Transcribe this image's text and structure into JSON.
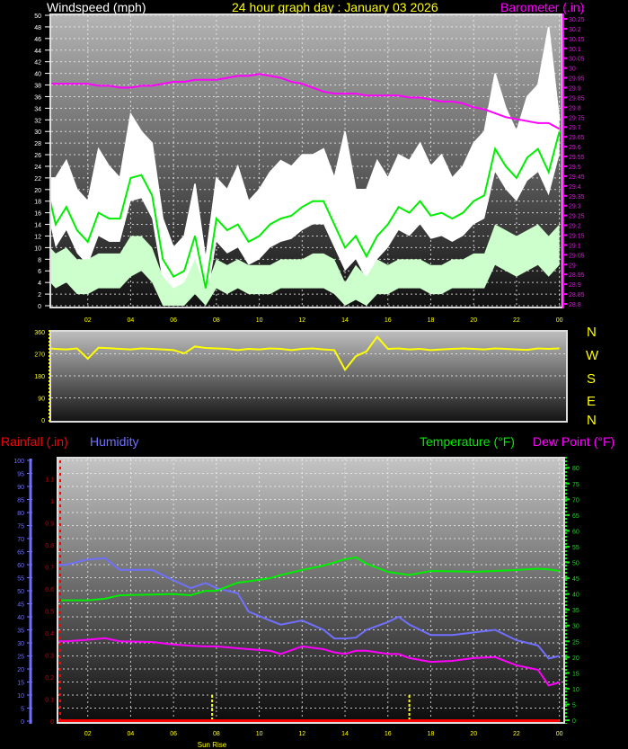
{
  "header": {
    "wind_title": "Windspeed (mph)",
    "title": "24 hour graph day : January 03 2026",
    "baro_title": "Barometer (.in)"
  },
  "bottom_legend": {
    "rainfall": "Rainfall (.in)",
    "humidity": "Humidity",
    "temperature": "Temperature (°F)",
    "dewpoint": "Dew Point (°F)"
  },
  "direction_labels": [
    "N",
    "W",
    "S",
    "E",
    "N"
  ],
  "sunrise_label": "Sun Rise",
  "colors": {
    "background": "#000000",
    "gust": "#ffffff",
    "average": "#00ee00",
    "speed": "#ccffcc",
    "barometer": "#ff00ff",
    "direction": "#ffff00",
    "temperature": "#00ee00",
    "dewpoint": "#ff00ff",
    "humidity": "#7070ff",
    "rainfall": "#ff0000",
    "time_axis": "#ffff00"
  },
  "chart_data": [
    {
      "id": "wind",
      "type": "line",
      "xlabel": "",
      "x_ticks": [
        "02",
        "04",
        "06",
        "08",
        "10",
        "12",
        "14",
        "16",
        "18",
        "20",
        "22",
        "00"
      ],
      "ylim": [
        0,
        50
      ],
      "y_ticks": [
        "0",
        "2",
        "4",
        "6",
        "8",
        "10",
        "12",
        "14",
        "16",
        "18",
        "20",
        "22",
        "24",
        "26",
        "28",
        "30",
        "32",
        "34",
        "36",
        "38",
        "40",
        "42",
        "44",
        "46",
        "48",
        "50"
      ],
      "y2lim": [
        28.8,
        30.25
      ],
      "y2_ticks": [
        "28.8",
        "28.85",
        "28.9",
        "28.95",
        "29",
        "29.05",
        "29.1",
        "29.15",
        "29.2",
        "29.25",
        "29.3",
        "29.35",
        "29.4",
        "29.45",
        "29.5",
        "29.55",
        "29.6",
        "29.65",
        "29.7",
        "29.75",
        "29.8",
        "29.85",
        "29.9",
        "29.95",
        "30",
        "30.05",
        "30.1",
        "30.15",
        "30.2",
        "30.25"
      ],
      "grid": true,
      "x": [
        0.25,
        0.5,
        1,
        1.5,
        2,
        2.5,
        3,
        3.5,
        4,
        4.5,
        5,
        5.5,
        6,
        6.5,
        7,
        7.5,
        8,
        8.5,
        9,
        9.5,
        10,
        10.5,
        11,
        11.5,
        12,
        12.5,
        13,
        13.5,
        14,
        14.5,
        15,
        15.5,
        16,
        16.5,
        17,
        17.5,
        18,
        18.5,
        19,
        19.5,
        20,
        20.5,
        21,
        21.5,
        22,
        22.5,
        23,
        23.5,
        24
      ],
      "series": {
        "gust": [
          22,
          22,
          25,
          20,
          18,
          27,
          24,
          22,
          33,
          30,
          28,
          15,
          10,
          12,
          21,
          8,
          22,
          20,
          24,
          18,
          20,
          23,
          25,
          24,
          26,
          26,
          27,
          22,
          30,
          20,
          20,
          25,
          22,
          26,
          25,
          28,
          24,
          26,
          22,
          24,
          28,
          30,
          40,
          34,
          30,
          36,
          38,
          48,
          32
        ],
        "average": [
          18,
          14,
          17,
          13,
          11,
          16,
          15,
          15,
          22,
          22.5,
          19,
          8,
          5,
          6,
          12,
          3,
          15,
          13,
          14,
          11,
          12,
          14,
          15,
          15.5,
          17,
          18,
          18,
          14,
          10,
          12,
          8.5,
          12,
          14,
          17,
          16,
          18,
          15.5,
          16,
          15,
          16,
          18,
          19,
          27,
          24,
          22,
          25.5,
          27,
          23,
          30
        ],
        "speed_high": [
          10,
          9,
          10,
          8,
          8,
          9,
          9,
          9,
          12,
          12,
          10,
          5,
          3,
          4,
          8,
          3,
          8,
          7,
          8,
          7,
          7,
          7,
          8,
          8,
          8,
          9,
          9,
          8,
          4,
          7,
          5,
          8,
          7,
          8,
          8,
          8,
          7,
          7,
          8,
          8,
          9,
          9,
          14,
          13,
          12,
          13,
          14,
          12,
          14
        ],
        "speed_low": [
          4,
          3,
          4,
          2,
          2,
          3,
          3,
          3,
          5,
          6,
          4,
          0,
          0,
          0,
          2,
          0,
          3,
          2,
          3,
          2,
          2,
          2,
          3,
          3,
          3,
          3,
          3,
          2,
          0,
          1,
          0,
          2,
          2,
          3,
          3,
          3,
          2,
          2,
          3,
          3,
          3,
          3,
          7,
          6,
          5,
          6,
          7,
          5,
          7
        ],
        "barometer": [
          29.92,
          29.92,
          29.92,
          29.92,
          29.92,
          29.91,
          29.91,
          29.9,
          29.9,
          29.91,
          29.91,
          29.92,
          29.93,
          29.93,
          29.94,
          29.94,
          29.94,
          29.95,
          29.96,
          29.96,
          29.97,
          29.96,
          29.95,
          29.93,
          29.92,
          29.9,
          29.88,
          29.87,
          29.87,
          29.87,
          29.86,
          29.86,
          29.86,
          29.86,
          29.85,
          29.85,
          29.84,
          29.83,
          29.83,
          29.82,
          29.8,
          29.79,
          29.77,
          29.75,
          29.74,
          29.73,
          29.72,
          29.72,
          29.69
        ]
      }
    },
    {
      "id": "direction",
      "type": "line",
      "ylim": [
        0,
        360
      ],
      "y_ticks": [
        "0",
        "90",
        "180",
        "270",
        "360"
      ],
      "grid": true,
      "x": [
        0.25,
        0.5,
        1,
        1.5,
        2,
        2.5,
        3,
        3.5,
        4,
        4.5,
        5,
        5.5,
        6,
        6.5,
        7,
        7.5,
        8,
        8.5,
        9,
        9.5,
        10,
        10.5,
        11,
        11.5,
        12,
        12.5,
        13,
        13.5,
        14,
        14.5,
        15,
        15.5,
        16,
        16.5,
        17,
        17.5,
        18,
        18.5,
        19,
        19.5,
        20,
        20.5,
        21,
        21.5,
        22,
        22.5,
        23,
        23.5,
        24
      ],
      "values": [
        292,
        290,
        288,
        292,
        250,
        295,
        293,
        290,
        288,
        292,
        290,
        288,
        285,
        272,
        300,
        294,
        292,
        290,
        285,
        290,
        288,
        292,
        290,
        285,
        290,
        292,
        288,
        285,
        205,
        260,
        280,
        340,
        290,
        292,
        288,
        290,
        285,
        288,
        290,
        292,
        290,
        288,
        292,
        290,
        288,
        286,
        292,
        290,
        292
      ]
    },
    {
      "id": "climate",
      "type": "line",
      "x_ticks": [
        "02",
        "04",
        "06",
        "08",
        "10",
        "12",
        "14",
        "16",
        "18",
        "20",
        "22",
        "00"
      ],
      "humidity_lim": [
        0,
        100
      ],
      "humidity_ticks": [
        "0",
        "5",
        "10",
        "15",
        "20",
        "25",
        "30",
        "35",
        "40",
        "45",
        "50",
        "55",
        "60",
        "65",
        "70",
        "75",
        "80",
        "85",
        "90",
        "95",
        "100"
      ],
      "rain_lim": [
        0,
        1.1
      ],
      "rain_ticks": [
        "0",
        "0.1",
        "0.2",
        "0.3",
        "0.4",
        "0.5",
        "0.6",
        "0.7",
        "0.8",
        "0.9",
        "1",
        "1.1"
      ],
      "temp_lim": [
        0,
        80
      ],
      "temp_ticks": [
        "0",
        "5",
        "10",
        "15",
        "20",
        "25",
        "30",
        "35",
        "40",
        "45",
        "50",
        "55",
        "60",
        "65",
        "70",
        "75",
        "80"
      ],
      "grid": true,
      "x": [
        0.25,
        1,
        2,
        2.8,
        3.5,
        5,
        6,
        6.8,
        7.5,
        8,
        9,
        9.5,
        10.5,
        11,
        12,
        13,
        13.5,
        14,
        14.5,
        15,
        16,
        16.5,
        17,
        18,
        19,
        20,
        21,
        22,
        23,
        23.5,
        24
      ],
      "series": {
        "humidity": [
          60,
          60,
          62,
          62.5,
          58,
          58,
          54,
          51,
          53,
          51,
          49,
          42,
          38.6,
          37,
          38.6,
          35,
          31.7,
          31.7,
          32,
          35,
          38,
          40,
          37,
          33,
          33,
          34,
          35,
          31,
          29,
          24,
          25
        ],
        "temperature": [
          38,
          38,
          38,
          38.5,
          39.6,
          39.8,
          40,
          39.6,
          41,
          41,
          43.6,
          44,
          45,
          46,
          47.6,
          49,
          50,
          51,
          51.6,
          49.6,
          47,
          46.5,
          46,
          47.3,
          47.2,
          47,
          47.3,
          47.6,
          48,
          47.8,
          47.3
        ],
        "dewpoint": [
          25,
          25,
          25.5,
          26,
          25,
          24.8,
          24,
          23.6,
          23.4,
          23.4,
          22.8,
          22.5,
          22,
          21,
          23.4,
          22.5,
          21.5,
          21,
          22,
          22,
          21,
          21,
          19.7,
          18.5,
          18.8,
          19.7,
          20,
          17.4,
          16,
          11,
          12
        ],
        "rainfall": [
          0,
          0,
          0,
          0,
          0,
          0,
          0,
          0,
          0,
          0,
          0,
          0,
          0,
          0,
          0,
          0,
          0,
          0,
          0,
          0,
          0,
          0,
          0,
          0,
          0,
          0,
          0,
          0,
          0,
          0,
          0
        ]
      },
      "sunrise_hour": 7.8,
      "sunset_hour": 17.0
    }
  ]
}
